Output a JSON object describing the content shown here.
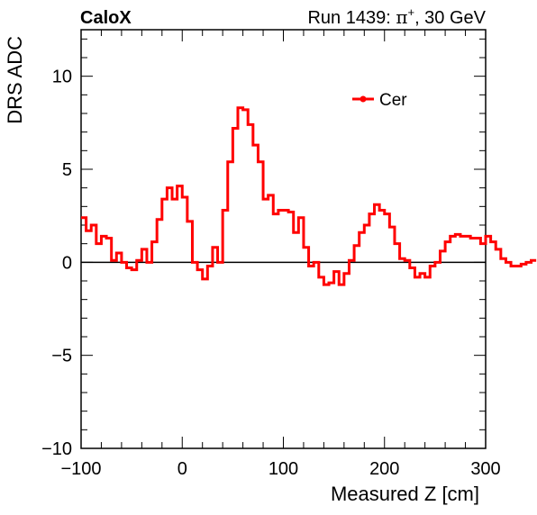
{
  "header": {
    "brand": "CaloX",
    "run_label": "Run 1439:",
    "particle": "π",
    "particle_sup": "+",
    "energy": ", 30 GeV"
  },
  "chart_data": {
    "type": "line",
    "xlabel": "Measured Z [cm]",
    "ylabel": "DRS ADC",
    "xlim": [
      -100,
      300
    ],
    "ylim": [
      -10,
      12.5
    ],
    "x_ticks": [
      -100,
      0,
      100,
      200,
      300
    ],
    "x_tick_labels": [
      "−100",
      "0",
      "100",
      "200",
      "300"
    ],
    "y_ticks": [
      -10,
      -5,
      0,
      5,
      10
    ],
    "y_tick_labels": [
      "−10",
      "−5",
      "0",
      "5",
      "10"
    ],
    "legend_placement": "top-right",
    "series_color": "#ff0000",
    "series": [
      {
        "name": "Cer",
        "bin_width": 5,
        "x_start": -100,
        "values": [
          2.4,
          1.7,
          2.0,
          1.0,
          1.4,
          1.3,
          0.1,
          0.5,
          0.0,
          -0.3,
          -0.4,
          0.1,
          0.7,
          0.0,
          1.1,
          2.3,
          3.4,
          4.0,
          3.4,
          4.1,
          3.5,
          2.2,
          0.0,
          -0.4,
          -0.9,
          -0.2,
          0.8,
          0.0,
          2.8,
          5.4,
          7.2,
          8.3,
          8.2,
          7.4,
          6.3,
          5.4,
          3.4,
          3.6,
          2.6,
          2.8,
          2.8,
          2.7,
          1.6,
          2.4,
          0.8,
          -0.2,
          0.0,
          -0.8,
          -1.2,
          -1.1,
          -0.5,
          -1.2,
          -0.6,
          0.1,
          0.9,
          1.6,
          2.0,
          2.6,
          3.1,
          2.8,
          2.6,
          1.9,
          1.0,
          0.2,
          0.1,
          -0.3,
          -0.8,
          -0.6,
          -0.8,
          -0.2,
          0.0,
          0.6,
          1.1,
          1.4,
          1.5,
          1.4,
          1.4,
          1.3,
          1.3,
          1.0,
          1.4,
          1.1,
          0.7,
          0.2,
          0.0,
          -0.2,
          -0.2,
          -0.1,
          0.0,
          0.1
        ]
      }
    ]
  }
}
